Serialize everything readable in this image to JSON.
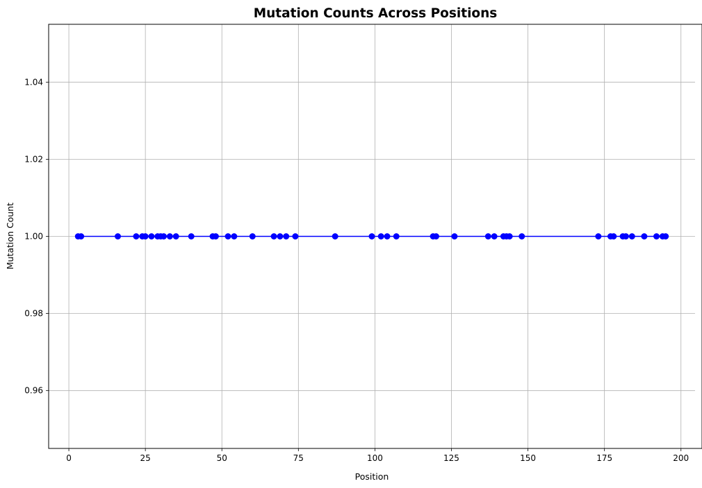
{
  "chart_data": {
    "type": "line",
    "title": "Mutation Counts Across Positions",
    "xlabel": "Position",
    "ylabel": "Mutation Count",
    "xlim": [
      -6.6,
      204.6
    ],
    "ylim": [
      0.945,
      1.055
    ],
    "xticks": [
      0,
      25,
      50,
      75,
      100,
      125,
      150,
      175,
      200
    ],
    "yticks": [
      0.96,
      0.98,
      1.0,
      1.02,
      1.04
    ],
    "ytick_labels": [
      "0.96",
      "0.98",
      "1.00",
      "1.02",
      "1.04"
    ],
    "grid": true,
    "series": [
      {
        "color": "#0000ff",
        "marker": "circle",
        "x": [
          3,
          4,
          16,
          22,
          24,
          25,
          27,
          29,
          30,
          31,
          33,
          35,
          40,
          47,
          48,
          52,
          54,
          60,
          67,
          69,
          71,
          74,
          87,
          99,
          102,
          104,
          107,
          119,
          120,
          126,
          137,
          139,
          142,
          143,
          144,
          148,
          173,
          177,
          178,
          181,
          182,
          184,
          188,
          192,
          194,
          195
        ],
        "y": [
          1,
          1,
          1,
          1,
          1,
          1,
          1,
          1,
          1,
          1,
          1,
          1,
          1,
          1,
          1,
          1,
          1,
          1,
          1,
          1,
          1,
          1,
          1,
          1,
          1,
          1,
          1,
          1,
          1,
          1,
          1,
          1,
          1,
          1,
          1,
          1,
          1,
          1,
          1,
          1,
          1,
          1,
          1,
          1,
          1,
          1
        ]
      }
    ]
  }
}
